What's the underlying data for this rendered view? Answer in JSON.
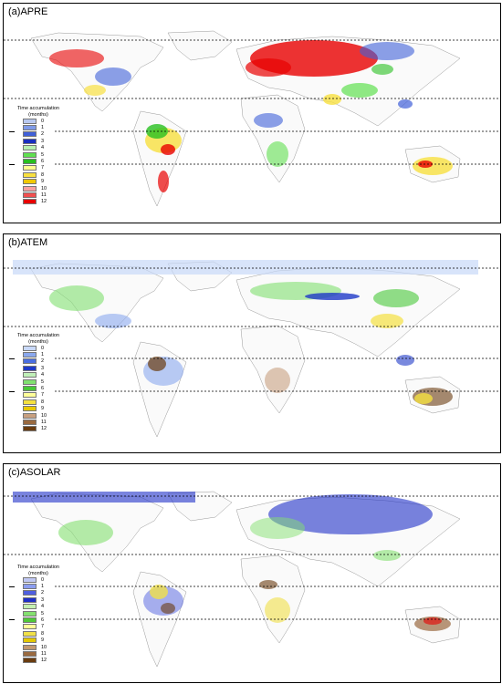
{
  "panels": [
    {
      "title": "(a)APRE",
      "legend_title": "Time accumulation (months)",
      "colors": [
        "#b8c8f0",
        "#7f9ae8",
        "#4060d8",
        "#1a2fc0",
        "#b8f0b0",
        "#60e050",
        "#28c020",
        "#ffff90",
        "#f8e040",
        "#f0c800",
        "#f8a0a0",
        "#f05050",
        "#e80000"
      ]
    },
    {
      "title": "(b)ATEM",
      "legend_title": "Time accumulation (months)",
      "colors": [
        "#c8d8f8",
        "#8aa8ee",
        "#4a6ee0",
        "#1f3ac8",
        "#c0f0b8",
        "#80e070",
        "#48c838",
        "#ffff99",
        "#f4e040",
        "#e8c800",
        "#c8a080",
        "#9a6a40",
        "#6a3c10"
      ]
    },
    {
      "title": "(c)ASOLAR",
      "legend_title": "Time accumulation (months)",
      "colors": [
        "#c0c8f4",
        "#8c9ef0",
        "#4f5fe0",
        "#2030c8",
        "#c4f0b0",
        "#84e070",
        "#50c838",
        "#ffff99",
        "#f0e048",
        "#e4c800",
        "#c09870",
        "#9a6a40",
        "#6a3c10"
      ]
    }
  ],
  "legend_labels": [
    "0",
    "1",
    "2",
    "3",
    "4",
    "5",
    "6",
    "7",
    "8",
    "9",
    "10",
    "11",
    "12"
  ]
}
